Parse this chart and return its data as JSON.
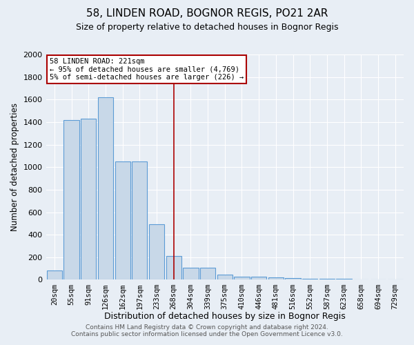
{
  "title": "58, LINDEN ROAD, BOGNOR REGIS, PO21 2AR",
  "subtitle": "Size of property relative to detached houses in Bognor Regis",
  "xlabel": "Distribution of detached houses by size in Bognor Regis",
  "ylabel": "Number of detached properties",
  "bin_labels": [
    "20sqm",
    "55sqm",
    "91sqm",
    "126sqm",
    "162sqm",
    "197sqm",
    "233sqm",
    "268sqm",
    "304sqm",
    "339sqm",
    "375sqm",
    "410sqm",
    "446sqm",
    "481sqm",
    "516sqm",
    "552sqm",
    "587sqm",
    "623sqm",
    "658sqm",
    "694sqm",
    "729sqm"
  ],
  "bar_heights": [
    80,
    1420,
    1430,
    1620,
    1050,
    1050,
    490,
    210,
    110,
    110,
    45,
    30,
    25,
    20,
    15,
    12,
    10,
    8,
    5,
    3,
    2
  ],
  "bar_color": "#c8d8e8",
  "bar_edge_color": "#5b9bd5",
  "vline_x": 7.0,
  "vline_color": "#aa0000",
  "ylim": [
    0,
    2000
  ],
  "yticks": [
    0,
    200,
    400,
    600,
    800,
    1000,
    1200,
    1400,
    1600,
    1800,
    2000
  ],
  "annotation_text": "58 LINDEN ROAD: 221sqm\n← 95% of detached houses are smaller (4,769)\n5% of semi-detached houses are larger (226) →",
  "annotation_box_color": "#ffffff",
  "annotation_box_edge": "#aa0000",
  "footer_line1": "Contains HM Land Registry data © Crown copyright and database right 2024.",
  "footer_line2": "Contains public sector information licensed under the Open Government Licence v3.0.",
  "background_color": "#e8eef5",
  "plot_background": "#e8eef5",
  "grid_color": "#ffffff",
  "title_fontsize": 11,
  "subtitle_fontsize": 9,
  "tick_fontsize": 7.5,
  "ylabel_fontsize": 8.5,
  "xlabel_fontsize": 9,
  "annotation_fontsize": 7.5
}
